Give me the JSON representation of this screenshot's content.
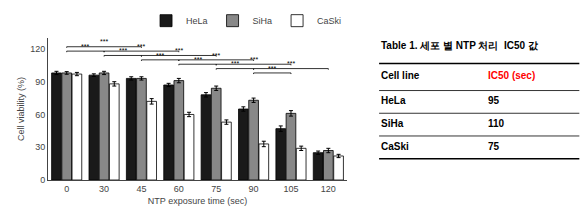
{
  "chart_data": {
    "type": "bar",
    "categories": [
      "0",
      "30",
      "45",
      "60",
      "75",
      "90",
      "105",
      "120"
    ],
    "series": [
      {
        "name": "HeLa",
        "color": "#1a1a1a",
        "values": [
          98,
          96,
          93,
          87,
          78,
          65,
          47,
          25
        ],
        "errors": [
          1.5,
          1.2,
          1.5,
          1.5,
          2.0,
          2.0,
          2.5,
          1.5
        ]
      },
      {
        "name": "SiHa",
        "color": "#888888",
        "values": [
          98,
          98,
          93,
          91,
          84,
          73,
          61,
          27
        ],
        "errors": [
          1.2,
          1.5,
          1.5,
          2.0,
          2.0,
          2.0,
          2.5,
          2.0
        ]
      },
      {
        "name": "CaSki",
        "color": "#ffffff",
        "values": [
          97,
          88,
          72,
          60,
          53,
          33,
          29,
          22
        ],
        "errors": [
          1.5,
          2.0,
          2.5,
          2.0,
          2.0,
          2.5,
          2.0,
          1.5
        ]
      }
    ],
    "xlabel": "NTP exposure time (sec)",
    "ylabel": "Cell viability (%)",
    "ylim": [
      0,
      130
    ],
    "yticks": [
      0,
      30,
      60,
      90,
      120
    ],
    "grid": false,
    "legend": "upper right",
    "annotations": [
      {
        "text": "***",
        "x1": "0",
        "x2": "30",
        "y": 118
      },
      {
        "text": "***",
        "x1": "0",
        "x2": "45",
        "y": 122
      },
      {
        "text": "***",
        "x1": "30",
        "x2": "45",
        "y": 114
      },
      {
        "text": "***",
        "x1": "30",
        "x2": "60",
        "y": 118
      },
      {
        "text": "***",
        "x1": "45",
        "x2": "60",
        "y": 110
      },
      {
        "text": "***",
        "x1": "45",
        "x2": "75",
        "y": 114
      },
      {
        "text": "***",
        "x1": "60",
        "x2": "75",
        "y": 106
      },
      {
        "text": "***",
        "x1": "60",
        "x2": "90",
        "y": 110
      },
      {
        "text": "***",
        "x1": "75",
        "x2": "90",
        "y": 102
      },
      {
        "text": "***",
        "x1": "75",
        "x2": "105",
        "y": 106
      },
      {
        "text": "***",
        "x1": "90",
        "x2": "105",
        "y": 98
      },
      {
        "text": "***",
        "x1": "90",
        "x2": "120",
        "y": 102
      }
    ],
    "table": {
      "title": "Table 1. 세포 별 NTP 처리  IC50 값",
      "headers": [
        "Cell line",
        "IC50 (sec)"
      ],
      "header_colors": [
        "black",
        "red"
      ],
      "rows": [
        [
          "HeLa",
          "95"
        ],
        [
          "SiHa",
          "110"
        ],
        [
          "CaSki",
          "75"
        ]
      ]
    }
  }
}
